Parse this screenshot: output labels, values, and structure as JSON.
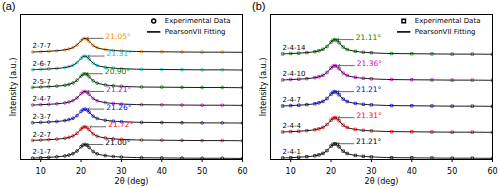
{
  "chart_data": [
    {
      "type": "line",
      "title": "(a)",
      "x_label": "2θ (deg)",
      "y_label": "Intensity (a.u.)",
      "x": [
        8,
        10,
        12,
        14,
        16,
        17,
        18,
        19,
        20,
        20.5,
        21,
        21.5,
        22,
        23,
        24,
        26,
        28,
        30,
        35,
        40,
        45,
        50,
        55,
        60
      ],
      "xlim": [
        5,
        60
      ],
      "xticks": [
        10,
        20,
        30,
        40,
        50,
        60
      ],
      "ylim": [
        0,
        8.2
      ],
      "yticks": [],
      "tick_labels": "x",
      "marker": "circle",
      "legend_items": [
        {
          "name": "Experimental Data",
          "marker": "circle"
        },
        {
          "name": "PearsonVII Fitting",
          "line_style": "solid",
          "color": "#000000"
        }
      ],
      "series": [
        {
          "name": "2-1-7",
          "color": "#000000",
          "peak": 21.0,
          "peak_label": "21.00°",
          "values": [
            0.08,
            0.1,
            0.12,
            0.15,
            0.2,
            0.25,
            0.33,
            0.48,
            0.72,
            0.82,
            0.85,
            0.8,
            0.68,
            0.45,
            0.32,
            0.22,
            0.17,
            0.14,
            0.1,
            0.09,
            0.08,
            0.07,
            0.07,
            0.06
          ]
        },
        {
          "name": "2-2-7",
          "color": "#ff0000",
          "peak": 21.72,
          "peak_label": "21.72°",
          "values": [
            1.08,
            1.1,
            1.12,
            1.15,
            1.2,
            1.25,
            1.33,
            1.48,
            1.72,
            1.82,
            1.85,
            1.8,
            1.68,
            1.45,
            1.32,
            1.22,
            1.17,
            1.14,
            1.1,
            1.09,
            1.08,
            1.07,
            1.07,
            1.06
          ]
        },
        {
          "name": "2-3-7",
          "color": "#0000ff",
          "peak": 21.26,
          "peak_label": "21.26°",
          "values": [
            2.08,
            2.1,
            2.12,
            2.15,
            2.2,
            2.25,
            2.33,
            2.48,
            2.72,
            2.82,
            2.85,
            2.8,
            2.68,
            2.45,
            2.32,
            2.22,
            2.17,
            2.14,
            2.1,
            2.09,
            2.08,
            2.07,
            2.07,
            2.06
          ]
        },
        {
          "name": "2-4-7",
          "color": "#cc00cc",
          "peak": 21.21,
          "peak_label": "21.21°",
          "values": [
            3.08,
            3.1,
            3.12,
            3.15,
            3.2,
            3.25,
            3.33,
            3.48,
            3.72,
            3.82,
            3.85,
            3.8,
            3.68,
            3.45,
            3.32,
            3.22,
            3.17,
            3.14,
            3.1,
            3.09,
            3.08,
            3.07,
            3.07,
            3.06
          ]
        },
        {
          "name": "2-5-7",
          "color": "#008000",
          "peak": 20.9,
          "peak_label": "20.90°",
          "values": [
            4.08,
            4.1,
            4.12,
            4.15,
            4.2,
            4.25,
            4.33,
            4.48,
            4.72,
            4.82,
            4.85,
            4.8,
            4.68,
            4.45,
            4.32,
            4.22,
            4.17,
            4.14,
            4.1,
            4.09,
            4.08,
            4.07,
            4.07,
            4.06
          ]
        },
        {
          "name": "2-6-7",
          "color": "#00cccc",
          "peak": 21.31,
          "peak_label": "21.31°",
          "values": [
            5.08,
            5.1,
            5.12,
            5.15,
            5.2,
            5.25,
            5.33,
            5.48,
            5.72,
            5.82,
            5.85,
            5.8,
            5.68,
            5.45,
            5.32,
            5.22,
            5.17,
            5.14,
            5.1,
            5.09,
            5.08,
            5.07,
            5.07,
            5.06
          ]
        },
        {
          "name": "2-7-7",
          "color": "#ff8c00",
          "peak": 21.05,
          "peak_label": "21.05°",
          "values": [
            6.08,
            6.1,
            6.12,
            6.15,
            6.2,
            6.25,
            6.33,
            6.48,
            6.72,
            6.82,
            6.85,
            6.8,
            6.68,
            6.45,
            6.32,
            6.22,
            6.17,
            6.14,
            6.1,
            6.09,
            6.08,
            6.07,
            6.07,
            6.06
          ]
        }
      ]
    },
    {
      "type": "line",
      "title": "(b)",
      "x_label": "2θ (deg)",
      "y_label": "Intensity (a.u.)",
      "x": [
        8,
        10,
        12,
        14,
        16,
        17,
        18,
        19,
        20,
        20.5,
        21,
        21.5,
        22,
        23,
        24,
        26,
        28,
        30,
        35,
        40,
        45,
        50,
        55,
        60
      ],
      "xlim": [
        5,
        60
      ],
      "xticks": [
        10,
        20,
        30,
        40,
        50,
        60
      ],
      "ylim": [
        0,
        7.8
      ],
      "yticks": [],
      "tick_labels": "x",
      "marker": "square",
      "legend_items": [
        {
          "name": "Experimental Data",
          "marker": "square"
        },
        {
          "name": "PearsonVII Fitting",
          "line_style": "solid",
          "color": "#000000"
        }
      ],
      "series": [
        {
          "name": "2-4-1",
          "color": "#000000",
          "peak": 21.21,
          "peak_label": "21.21°",
          "values": [
            0.08,
            0.1,
            0.12,
            0.15,
            0.2,
            0.25,
            0.33,
            0.48,
            0.72,
            0.82,
            0.85,
            0.8,
            0.68,
            0.45,
            0.32,
            0.22,
            0.17,
            0.14,
            0.1,
            0.09,
            0.08,
            0.07,
            0.07,
            0.06
          ]
        },
        {
          "name": "2-4-4",
          "color": "#ff0000",
          "peak": 21.31,
          "peak_label": "21.31°",
          "values": [
            1.48,
            1.5,
            1.52,
            1.55,
            1.6,
            1.65,
            1.73,
            1.88,
            2.12,
            2.22,
            2.25,
            2.2,
            2.08,
            1.85,
            1.72,
            1.62,
            1.57,
            1.54,
            1.5,
            1.49,
            1.48,
            1.47,
            1.47,
            1.46
          ]
        },
        {
          "name": "2-4-7",
          "color": "#0000ff",
          "peak": 21.21,
          "peak_label": "21.21°",
          "values": [
            2.88,
            2.9,
            2.92,
            2.95,
            3.0,
            3.05,
            3.13,
            3.28,
            3.52,
            3.62,
            3.65,
            3.6,
            3.48,
            3.25,
            3.12,
            3.02,
            2.97,
            2.94,
            2.9,
            2.89,
            2.88,
            2.87,
            2.87,
            2.86
          ]
        },
        {
          "name": "2-4-10",
          "color": "#cc00cc",
          "peak": 21.36,
          "peak_label": "21.36°",
          "values": [
            4.28,
            4.3,
            4.32,
            4.35,
            4.4,
            4.45,
            4.53,
            4.68,
            4.92,
            5.02,
            5.05,
            5.0,
            4.88,
            4.65,
            4.52,
            4.42,
            4.37,
            4.34,
            4.3,
            4.29,
            4.28,
            4.27,
            4.27,
            4.26
          ]
        },
        {
          "name": "2-4-14",
          "color": "#008000",
          "peak": 21.11,
          "peak_label": "21.11°",
          "values": [
            5.68,
            5.7,
            5.72,
            5.75,
            5.8,
            5.85,
            5.93,
            6.08,
            6.32,
            6.42,
            6.45,
            6.4,
            6.28,
            6.05,
            5.92,
            5.82,
            5.77,
            5.74,
            5.7,
            5.69,
            5.68,
            5.67,
            5.67,
            5.66
          ]
        }
      ]
    }
  ]
}
